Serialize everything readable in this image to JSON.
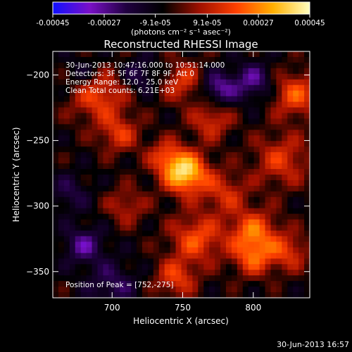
{
  "colorbar": {
    "tick_labels": [
      "-0.00045",
      "-0.00027",
      "-9.1e-05",
      "9.1e-05",
      "0.00027",
      "0.00045"
    ],
    "tick_values": [
      -0.00045,
      -0.00027,
      -9.1e-05,
      9.1e-05,
      0.00027,
      0.00045
    ],
    "range": [
      -0.00045,
      0.00045
    ],
    "unit_label": "(photons cm⁻² s⁻¹ asec⁻²)",
    "colormap": [
      "#1010ff",
      "#7a10c8",
      "#200040",
      "#000000",
      "#a01000",
      "#ff4000",
      "#ffb000",
      "#ffffc0"
    ]
  },
  "annotations": {
    "time_range": "30-Jun-2013 10:47:16.000 to 10:51:14.000",
    "detectors": "Detectors: 3F 5F 6F 7F 8F 9F, Att 0",
    "energy": "Energy Range: 12.0 - 25.0 keV",
    "clean": "Clean    Total counts: 6.21E+03",
    "peak": "Position of Peak = [752,-275]"
  },
  "footer_timestamp": "30-Jun-2013 16:57",
  "chart_data": {
    "type": "heatmap",
    "title": "Reconstructed RHESSI Image",
    "xlabel": "Heliocentric X (arcsec)",
    "ylabel": "Heliocentric Y (arcsec)",
    "xlim": [
      658,
      840
    ],
    "ylim": [
      -370,
      -182
    ],
    "xticks": [
      700,
      750,
      800
    ],
    "yticks": [
      -200,
      -250,
      -300,
      -350
    ],
    "peak": {
      "x": 752,
      "y": -275
    },
    "value_range": [
      -0.00045,
      0.00045
    ],
    "sources": [
      {
        "x": 752,
        "y": -275,
        "sigma": 11,
        "amp": 0.00045
      },
      {
        "x": 738,
        "y": -262,
        "sigma": 9,
        "amp": 0.0002
      },
      {
        "x": 690,
        "y": -215,
        "sigma": 14,
        "amp": 0.00025
      },
      {
        "x": 705,
        "y": -245,
        "sigma": 10,
        "amp": 0.0002
      },
      {
        "x": 750,
        "y": -205,
        "sigma": 11,
        "amp": 0.0002
      },
      {
        "x": 770,
        "y": -235,
        "sigma": 10,
        "amp": 0.0002
      },
      {
        "x": 830,
        "y": -215,
        "sigma": 12,
        "amp": 0.00025
      },
      {
        "x": 820,
        "y": -265,
        "sigma": 14,
        "amp": 0.0002
      },
      {
        "x": 780,
        "y": -290,
        "sigma": 11,
        "amp": 0.00018
      },
      {
        "x": 800,
        "y": -320,
        "sigma": 12,
        "amp": 0.00028
      },
      {
        "x": 760,
        "y": -325,
        "sigma": 13,
        "amp": 0.00025
      },
      {
        "x": 800,
        "y": -340,
        "sigma": 10,
        "amp": 0.00022
      },
      {
        "x": 825,
        "y": -335,
        "sigma": 10,
        "amp": 0.0002
      },
      {
        "x": 745,
        "y": -355,
        "sigma": 10,
        "amp": 0.00022
      },
      {
        "x": 710,
        "y": -300,
        "sigma": 10,
        "amp": 0.00015
      },
      {
        "x": 680,
        "y": -330,
        "sigma": 10,
        "amp": -0.0002
      },
      {
        "x": 670,
        "y": -290,
        "sigma": 10,
        "amp": -0.00012
      },
      {
        "x": 700,
        "y": -360,
        "sigma": 12,
        "amp": -0.00015
      },
      {
        "x": 775,
        "y": -210,
        "sigma": 9,
        "amp": -0.00022
      },
      {
        "x": 800,
        "y": -205,
        "sigma": 10,
        "amp": -0.0002
      },
      {
        "x": 720,
        "y": -200,
        "sigma": 9,
        "amp": -0.00015
      },
      {
        "x": 680,
        "y": -200,
        "sigma": 10,
        "amp": -0.00012
      }
    ]
  }
}
